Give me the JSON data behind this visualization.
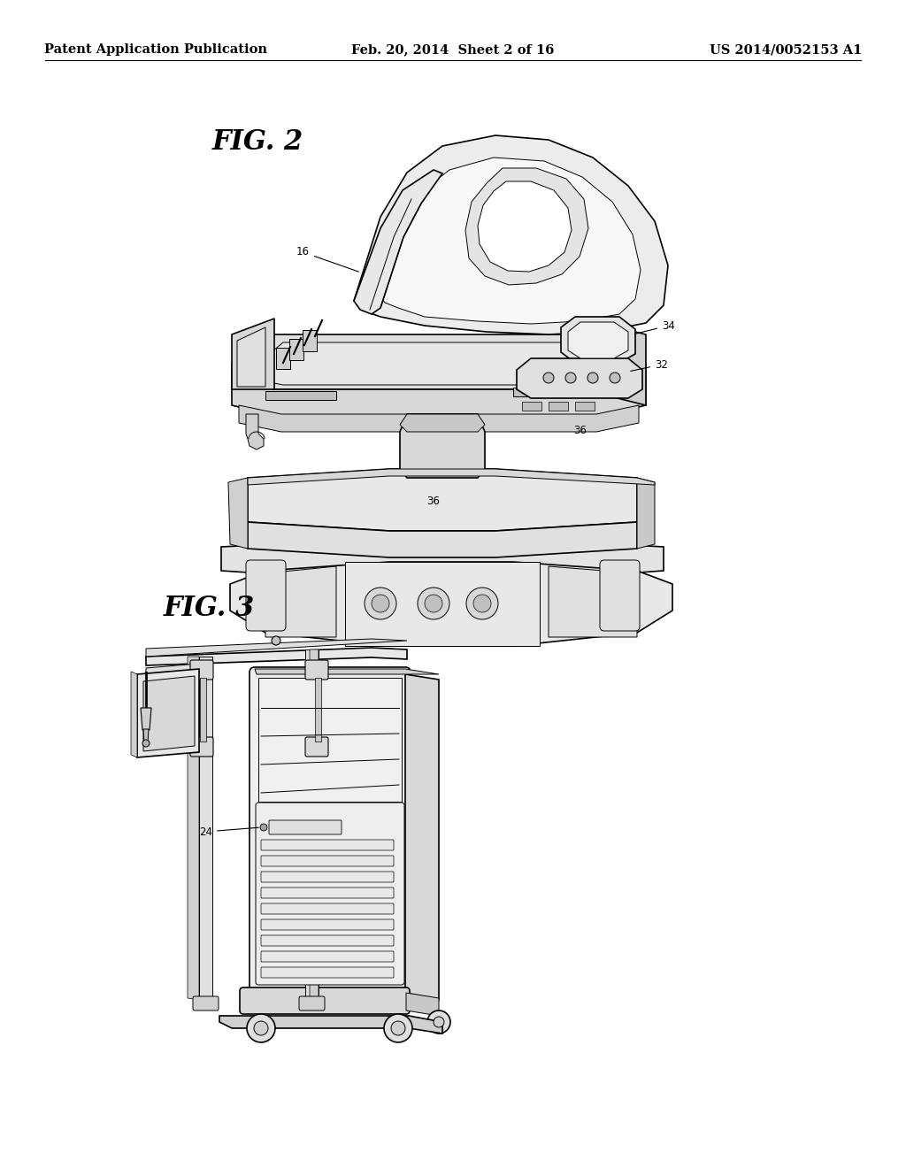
{
  "background_color": "#ffffff",
  "header_left": "Patent Application Publication",
  "header_center": "Feb. 20, 2014  Sheet 2 of 16",
  "header_right": "US 2014/0052153 A1",
  "header_fontsize": 10.5,
  "fig2_label": "FIG. 2",
  "fig3_label": "FIG. 3",
  "fig_label_fontsize": 22,
  "ref_fontsize": 8.5,
  "line_color": "#000000",
  "fill_light": "#f0f0f0",
  "fill_mid": "#e0e0e0",
  "fill_dark": "#c8c8c8",
  "fill_darker": "#b0b0b0"
}
